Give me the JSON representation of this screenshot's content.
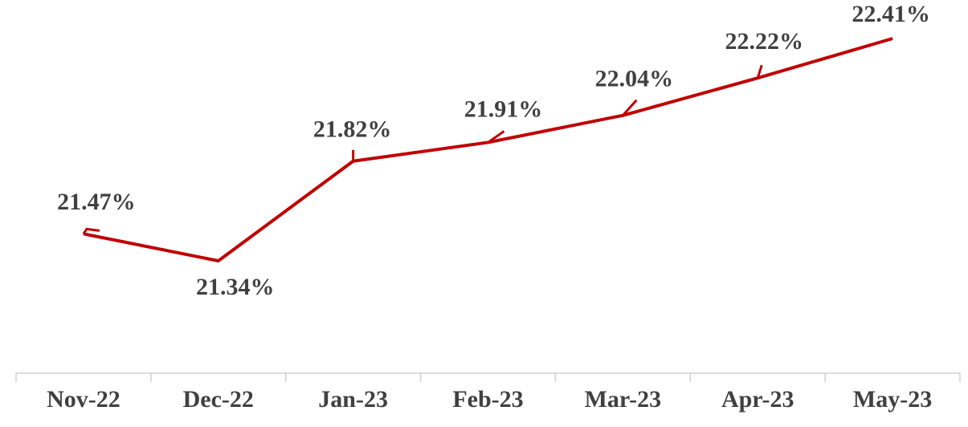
{
  "chart_data": {
    "type": "line",
    "categories": [
      "Nov-22",
      "Dec-22",
      "Jan-23",
      "Feb-23",
      "Mar-23",
      "Apr-23",
      "May-23"
    ],
    "series": [
      {
        "color": "#c00000",
        "values": [
          21.47,
          21.34,
          21.82,
          21.91,
          22.04,
          22.22,
          22.41
        ],
        "value_labels": [
          "21.47%",
          "21.34%",
          "21.82%",
          "21.91%",
          "22.04%",
          "22.22%",
          "22.41%"
        ]
      }
    ]
  }
}
